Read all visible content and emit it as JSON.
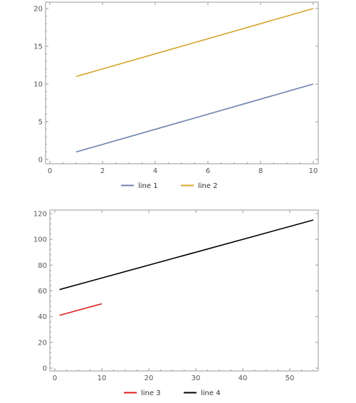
{
  "chart_data": [
    {
      "type": "line",
      "xlim": [
        0,
        10
      ],
      "ylim": [
        0,
        20
      ],
      "x_ticks": [
        0,
        2,
        4,
        6,
        8,
        10
      ],
      "y_ticks": [
        0,
        5,
        10,
        15,
        20
      ],
      "grid": false,
      "legend_placement": "bottom-center",
      "series": [
        {
          "name": "line 1",
          "color": "#6c82ad",
          "points": [
            [
              1,
              1
            ],
            [
              10,
              10
            ]
          ]
        },
        {
          "name": "line 2",
          "color": "#d6a42a",
          "points": [
            [
              1,
              11
            ],
            [
              10,
              20
            ]
          ]
        }
      ]
    },
    {
      "type": "line",
      "xlim": [
        0,
        55
      ],
      "ylim": [
        0,
        120
      ],
      "x_ticks": [
        0,
        10,
        20,
        30,
        40,
        50
      ],
      "y_ticks": [
        0,
        20,
        40,
        60,
        80,
        100,
        120
      ],
      "grid": false,
      "legend_placement": "bottom-center",
      "series": [
        {
          "name": "line 3",
          "color": "#dd1c1c",
          "points": [
            [
              1,
              41
            ],
            [
              10,
              50
            ]
          ]
        },
        {
          "name": "line 4",
          "color": "#000000",
          "points": [
            [
              1,
              61
            ],
            [
              55,
              115
            ]
          ]
        }
      ]
    }
  ]
}
